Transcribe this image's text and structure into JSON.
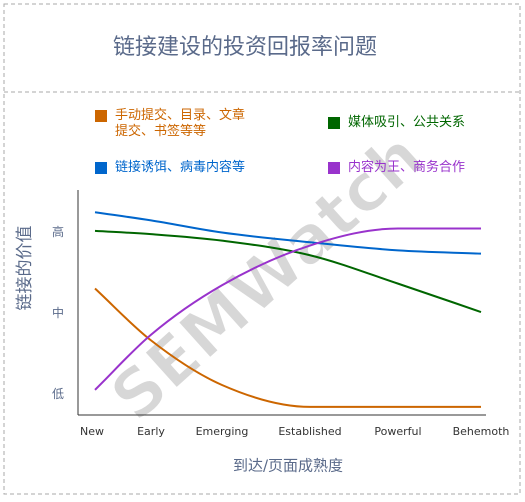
{
  "chart_data": {
    "type": "line",
    "title": "链接建设的投资回报率问题",
    "watermark": "SEMWatch",
    "x_label": "到达/页面成熟度",
    "y_label": "链接的价值",
    "categories": [
      "New",
      "Early",
      "Emerging",
      "Established",
      "Powerful",
      "Behemoth"
    ],
    "ylim": [
      0.75,
      3.5
    ],
    "yticks": [
      {
        "value": 1,
        "label": "低"
      },
      {
        "value": 2,
        "label": "中"
      },
      {
        "value": 3,
        "label": "高"
      }
    ],
    "grid": false,
    "series": [
      {
        "name": "手动提交、目录、文章提交、书签等等",
        "color": "#cc6600",
        "values": [
          2.31,
          1.67,
          1.12,
          0.85,
          0.85,
          0.85
        ]
      },
      {
        "name": "媒体吸引、公共关系",
        "color": "#006600",
        "values": [
          3.02,
          2.98,
          2.9,
          2.72,
          2.37,
          2.02
        ]
      },
      {
        "name": "链接诱饵、病毒内容等",
        "color": "#0066cc",
        "values": [
          3.25,
          3.15,
          3.0,
          2.88,
          2.78,
          2.74
        ]
      },
      {
        "name": "内容为王、商务合作",
        "color": "#9933cc",
        "values": [
          1.06,
          1.74,
          2.35,
          2.84,
          3.05,
          3.05
        ]
      }
    ]
  }
}
